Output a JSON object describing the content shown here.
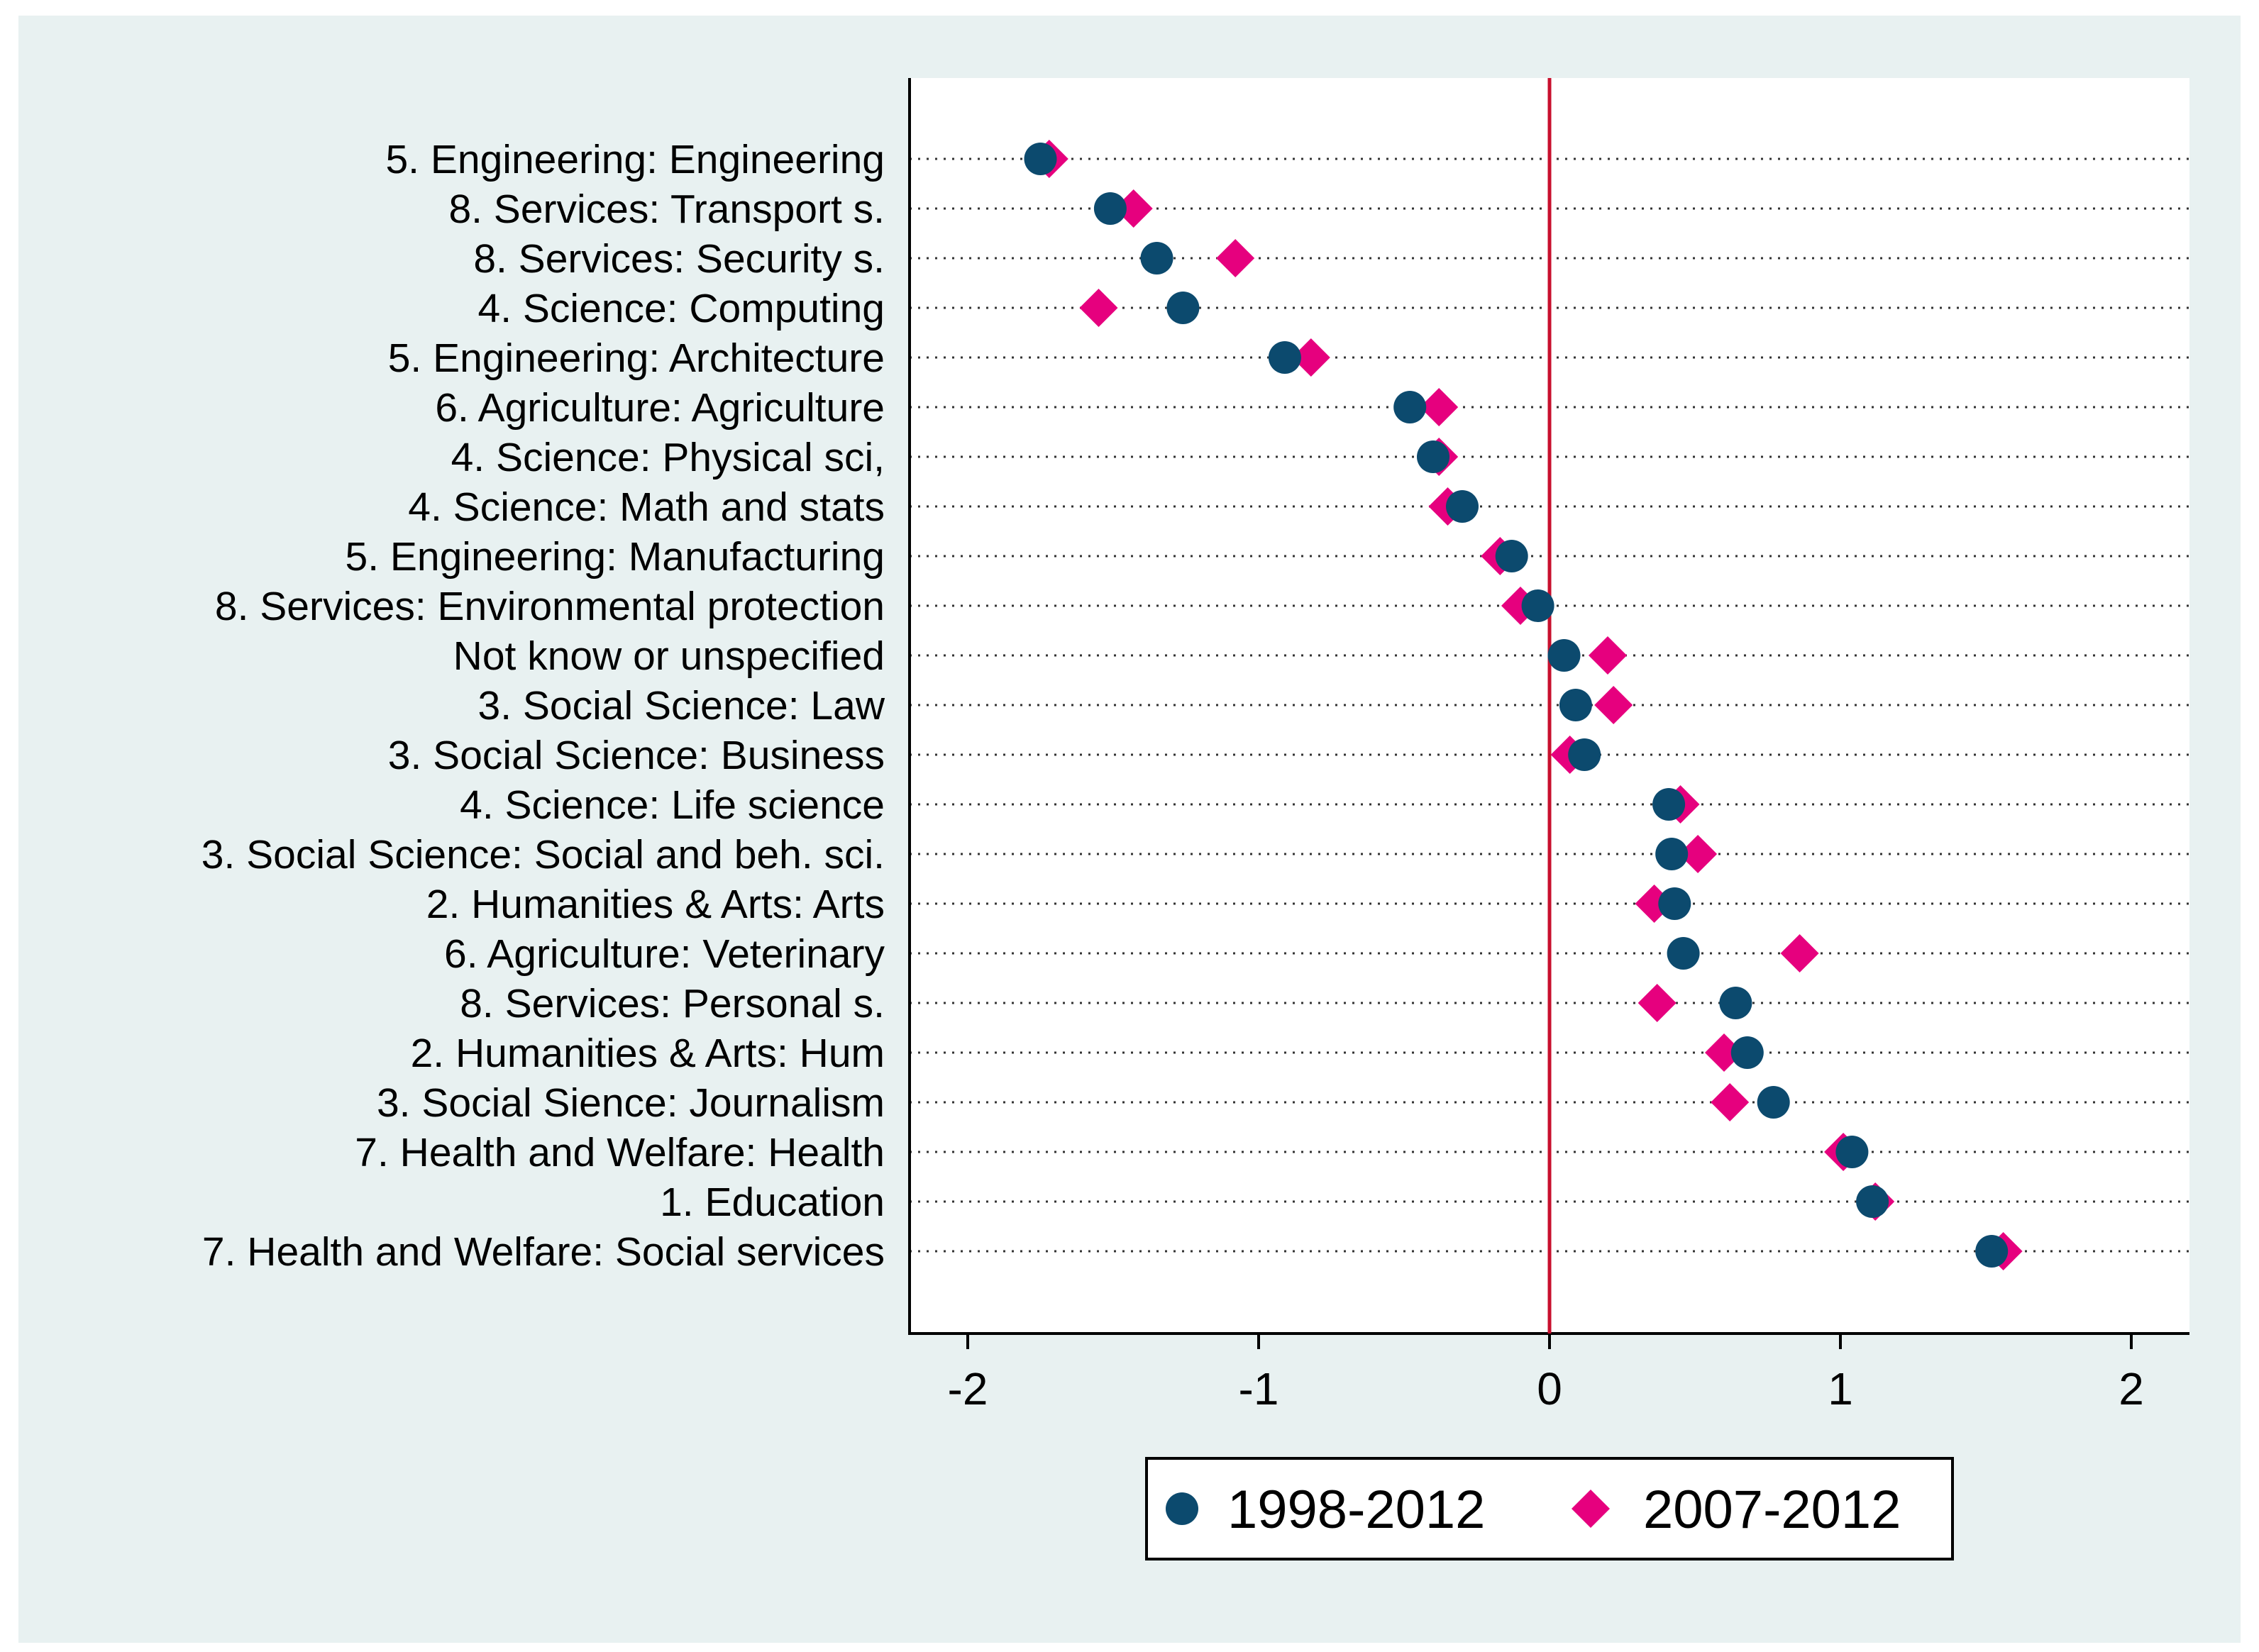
{
  "chart_data": {
    "type": "scatter",
    "categories": [
      "5. Engineering: Engineering",
      "8. Services: Transport s.",
      "8. Services: Security s.",
      "4. Science: Computing",
      "5. Engineering: Architecture",
      "6.  Agriculture: Agriculture",
      "4. Science: Physical sci,",
      "4. Science: Math and stats",
      "5. Engineering: Manufacturing",
      "8. Services: Environmental protection",
      "Not know or unspecified",
      "3. Social Science: Law",
      "3. Social Science: Business",
      "4. Science: Life science",
      "3. Social Science: Social and beh. sci.",
      "2. Humanities & Arts: Arts",
      "6. Agriculture: Veterinary",
      "8. Services: Personal s.",
      "2. Humanities & Arts: Hum",
      "3. Social Sience: Journalism",
      "7. Health and Welfare: Health",
      "1. Education",
      "7. Health and Welfare: Social services"
    ],
    "series": [
      {
        "name": "1998-2012",
        "marker": "circle",
        "color": "#0c4a6e",
        "values": [
          -1.75,
          -1.51,
          -1.35,
          -1.26,
          -0.91,
          -0.48,
          -0.4,
          -0.3,
          -0.13,
          -0.04,
          0.05,
          0.09,
          0.12,
          0.41,
          0.42,
          0.43,
          0.46,
          0.64,
          0.68,
          0.77,
          1.04,
          1.11,
          1.52
        ]
      },
      {
        "name": "2007-2012",
        "marker": "diamond",
        "color": "#e6007e",
        "values": [
          -1.72,
          -1.43,
          -1.08,
          -1.55,
          -0.82,
          -0.38,
          -0.38,
          -0.35,
          -0.17,
          -0.1,
          0.2,
          0.22,
          0.07,
          0.45,
          0.51,
          0.36,
          0.86,
          0.37,
          0.6,
          0.62,
          1.01,
          1.12,
          1.56
        ]
      }
    ],
    "x_ticks": [
      "-2",
      "-1",
      "0",
      "1",
      "2"
    ],
    "xlim": [
      -2.2,
      2.2
    ],
    "reference_line": {
      "x": 0,
      "color": "#c8102e"
    },
    "grid": "dotted horizontal lines per category",
    "legend_position": "bottom",
    "colors": {
      "background": "#e8f1f1",
      "plot_background": "#ffffff"
    }
  }
}
